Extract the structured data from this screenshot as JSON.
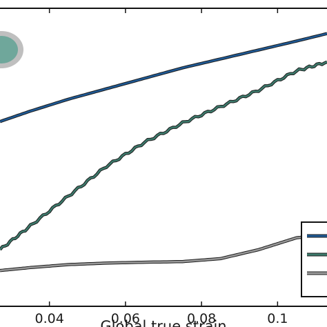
{
  "chart_data": {
    "type": "line",
    "xlabel": "Global true strain",
    "xlim": [
      0.027,
      0.113
    ],
    "ylim": [
      0,
      1
    ],
    "x_ticks": [
      0.04,
      0.06,
      0.08,
      0.1
    ],
    "x_tick_labels": [
      "0.04",
      "0.06",
      "0.08",
      "0.1"
    ],
    "grid": false,
    "legend_position": "bottom-right (partially cropped)",
    "series": [
      {
        "color": "#1f5a96",
        "x": [
          0.027,
          0.035,
          0.045,
          0.055,
          0.065,
          0.075,
          0.085,
          0.095,
          0.105,
          0.113
        ],
        "values": [
          0.62,
          0.655,
          0.695,
          0.73,
          0.765,
          0.8,
          0.83,
          0.86,
          0.89,
          0.915
        ]
      },
      {
        "color": "#3d7a6c",
        "x": [
          0.027,
          0.035,
          0.045,
          0.055,
          0.065,
          0.075,
          0.085,
          0.095,
          0.105,
          0.113
        ],
        "values": [
          0.19,
          0.27,
          0.37,
          0.47,
          0.55,
          0.615,
          0.67,
          0.725,
          0.79,
          0.82
        ]
      },
      {
        "color": "#9a9a9a",
        "x": [
          0.027,
          0.035,
          0.045,
          0.055,
          0.065,
          0.075,
          0.085,
          0.095,
          0.1,
          0.105,
          0.113
        ],
        "values": [
          0.12,
          0.13,
          0.14,
          0.145,
          0.148,
          0.15,
          0.16,
          0.19,
          0.21,
          0.23,
          0.24
        ]
      }
    ],
    "legend_entries": [
      {
        "color": "#1f5a96"
      },
      {
        "color": "#3d7a6c"
      },
      {
        "color": "#9a9a9a"
      }
    ],
    "marker_color": "#6fa79b"
  }
}
